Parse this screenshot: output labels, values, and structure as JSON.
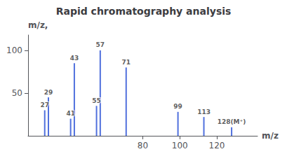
{
  "chart_data": {
    "type": "bar",
    "title": "Rapid chromatography analysis",
    "x": [
      27,
      29,
      41,
      43,
      55,
      57,
      71,
      99,
      113,
      128
    ],
    "values": [
      30,
      45,
      20,
      85,
      35,
      100,
      80,
      28,
      22,
      10
    ],
    "xlim": [
      18,
      142
    ],
    "xticks": [
      80,
      100,
      120
    ],
    "ylim": [
      0,
      118
    ],
    "yticks": [
      50,
      100
    ],
    "xlabel": "m/z",
    "ylabel": "m/z,",
    "grid": false,
    "annotations": [
      {
        "x": 27,
        "y": 30,
        "text": "27"
      },
      {
        "x": 29,
        "y": 45,
        "text": "29"
      },
      {
        "x": 41,
        "y": 20,
        "text": "41"
      },
      {
        "x": 43,
        "y": 85,
        "text": "43"
      },
      {
        "x": 55,
        "y": 35,
        "text": "55"
      },
      {
        "x": 57,
        "y": 100,
        "text": "57"
      },
      {
        "x": 71,
        "y": 80,
        "text": "71"
      },
      {
        "x": 99,
        "y": 28,
        "text": "99"
      },
      {
        "x": 113,
        "y": 22,
        "text": "113"
      },
      {
        "x": 128,
        "y": 10,
        "text": "128(M⁺)"
      }
    ]
  }
}
